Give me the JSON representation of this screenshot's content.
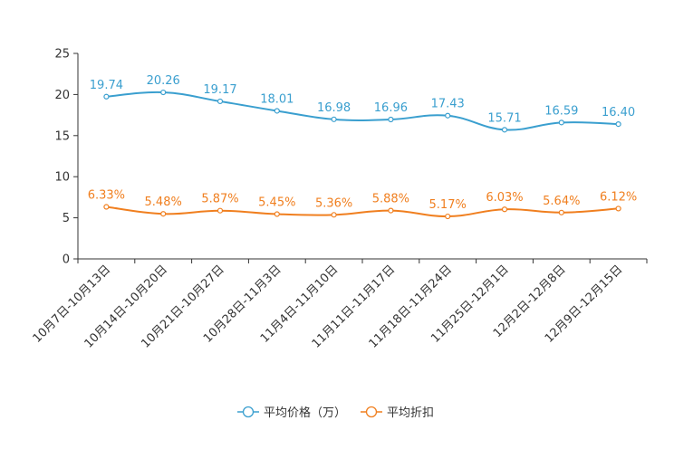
{
  "chart_data": {
    "type": "line",
    "categories": [
      "10月7日-10月13日",
      "10月14日-10月20日",
      "10月21日-10月27日",
      "10月28日-11月3日",
      "11月4日-11月10日",
      "11月11日-11月17日",
      "11月18日-11月24日",
      "11月25日-12月1日",
      "12月2日-12月8日",
      "12月9日-12月15日"
    ],
    "series": [
      {
        "name": "平均价格（万）",
        "color": "#3a9fcf",
        "values": [
          19.74,
          20.26,
          19.17,
          18.01,
          16.98,
          16.96,
          17.43,
          15.71,
          16.59,
          16.4
        ],
        "labels": [
          "19.74",
          "20.26",
          "19.17",
          "18.01",
          "16.98",
          "16.96",
          "17.43",
          "15.71",
          "16.59",
          "16.40"
        ]
      },
      {
        "name": "平均折扣",
        "color": "#f07f1f",
        "values": [
          6.33,
          5.48,
          5.87,
          5.45,
          5.36,
          5.88,
          5.17,
          6.03,
          5.64,
          6.12
        ],
        "labels": [
          "6.33%",
          "5.48%",
          "5.87%",
          "5.45%",
          "5.36%",
          "5.88%",
          "5.17%",
          "6.03%",
          "5.64%",
          "6.12%"
        ]
      }
    ],
    "yticks": [
      "0",
      "5",
      "10",
      "15",
      "20",
      "25"
    ],
    "ylim": [
      0,
      25
    ],
    "title": "",
    "xlabel": "",
    "ylabel": "",
    "legend_position": "bottom-center",
    "grid": false
  }
}
